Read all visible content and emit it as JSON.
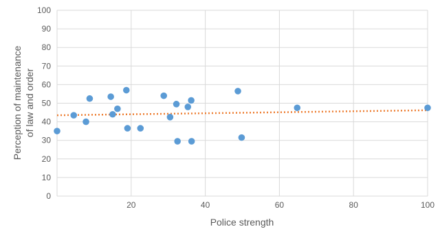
{
  "chart_data": {
    "type": "scatter",
    "title": "",
    "xlabel": "Police strength",
    "ylabel_lines": [
      "Perception of maintenance",
      "of law and order"
    ],
    "xlim": [
      0,
      100
    ],
    "ylim": [
      0,
      100
    ],
    "x_ticks": [
      "20",
      "40",
      "60",
      "80",
      "100"
    ],
    "y_ticks": [
      "0",
      "10",
      "20",
      "30",
      "40",
      "50",
      "60",
      "70",
      "80",
      "90",
      "100"
    ],
    "grid": true,
    "legend": "none",
    "point_color": "#5b9bd5",
    "trendline": {
      "type": "linear",
      "color": "#ed7d31",
      "x": [
        0,
        100
      ],
      "y": [
        43.5,
        46.2
      ]
    },
    "points": [
      {
        "x": 0,
        "y": 35
      },
      {
        "x": 4.5,
        "y": 43.5
      },
      {
        "x": 7.8,
        "y": 40
      },
      {
        "x": 8.8,
        "y": 52.5
      },
      {
        "x": 14.5,
        "y": 53.5
      },
      {
        "x": 15,
        "y": 44
      },
      {
        "x": 16.3,
        "y": 47
      },
      {
        "x": 18.7,
        "y": 57
      },
      {
        "x": 19,
        "y": 36.5
      },
      {
        "x": 22.5,
        "y": 36.5
      },
      {
        "x": 28.8,
        "y": 54
      },
      {
        "x": 30.5,
        "y": 42.5
      },
      {
        "x": 32.2,
        "y": 49.5
      },
      {
        "x": 32.5,
        "y": 29.5
      },
      {
        "x": 35.3,
        "y": 48
      },
      {
        "x": 36.2,
        "y": 51.5
      },
      {
        "x": 36.3,
        "y": 29.5
      },
      {
        "x": 48.8,
        "y": 56.5
      },
      {
        "x": 49.8,
        "y": 31.5
      },
      {
        "x": 64.8,
        "y": 47.5
      },
      {
        "x": 100,
        "y": 47.5
      }
    ]
  }
}
